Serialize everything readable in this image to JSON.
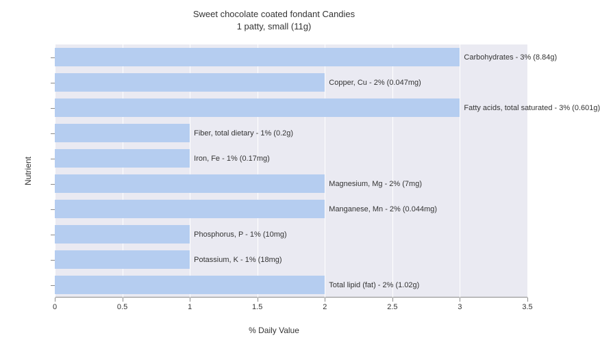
{
  "chart": {
    "type": "bar",
    "title_line1": "Sweet chocolate coated fondant Candies",
    "title_line2": "1 patty, small (11g)",
    "title_fontsize": 13,
    "xlabel": "% Daily Value",
    "ylabel": "Nutrient",
    "label_fontsize": 12,
    "xlim": [
      0,
      3.5
    ],
    "xtick_step": 0.5,
    "xticks": [
      "0",
      "0.5",
      "1",
      "1.5",
      "2",
      "2.5",
      "3",
      "3.5"
    ],
    "plot_background": "#eaeaf2",
    "grid_color": "#ffffff",
    "bar_color": "#b5cdf0",
    "text_color": "#333333",
    "bar_label_fontsize": 11,
    "tick_label_fontsize": 11,
    "bars": [
      {
        "label": "Carbohydrates - 3% (8.84g)",
        "value": 3
      },
      {
        "label": "Copper, Cu - 2% (0.047mg)",
        "value": 2
      },
      {
        "label": "Fatty acids, total saturated - 3% (0.601g)",
        "value": 3
      },
      {
        "label": "Fiber, total dietary - 1% (0.2g)",
        "value": 1
      },
      {
        "label": "Iron, Fe - 1% (0.17mg)",
        "value": 1
      },
      {
        "label": "Magnesium, Mg - 2% (7mg)",
        "value": 2
      },
      {
        "label": "Manganese, Mn - 2% (0.044mg)",
        "value": 2
      },
      {
        "label": "Phosphorus, P - 1% (10mg)",
        "value": 1
      },
      {
        "label": "Potassium, K - 1% (18mg)",
        "value": 1
      },
      {
        "label": "Total lipid (fat) - 2% (1.02g)",
        "value": 2
      }
    ]
  }
}
